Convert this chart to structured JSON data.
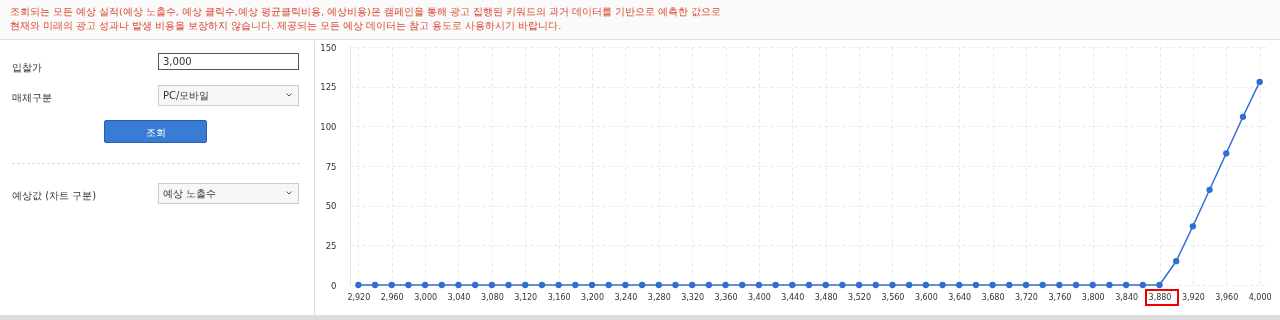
{
  "chart_data": [
    {
      "type": "other",
      "annotations": [
        "조회되는 모든 예상 실적(예상 노출수, 예상 클릭수,예상 평균클릭비용, 예상비용)은 캠페인을 통해 광고 집행된 키워드의 과거 데이터를 기반으로 예측한 값으로",
        "현재와 미래의 광고 성과나 발생 비용을 보장하지 않습니다. 제공되는 모든 예상 데이터는 참고 용도로 사용하시기 바랍니다.",
        "입찰가",
        "3,000",
        "매체구분",
        "PC/모바일",
        "조회",
        "예상값 (차트 구분)",
        "예상 노출수"
      ]
    },
    {
      "type": "line",
      "x": [
        2920,
        2940,
        2960,
        2980,
        3000,
        3020,
        3040,
        3060,
        3080,
        3100,
        3120,
        3140,
        3160,
        3180,
        3200,
        3220,
        3240,
        3260,
        3280,
        3300,
        3320,
        3340,
        3360,
        3380,
        3400,
        3420,
        3440,
        3460,
        3480,
        3500,
        3520,
        3540,
        3560,
        3580,
        3600,
        3620,
        3640,
        3660,
        3680,
        3700,
        3720,
        3740,
        3760,
        3780,
        3800,
        3820,
        3840,
        3860,
        3880,
        3900,
        3920,
        3940,
        3960,
        3980,
        4000
      ],
      "series": [
        {
          "color": "#2e6fd1",
          "values": [
            0,
            0,
            0,
            0,
            0,
            0,
            0,
            0,
            0,
            0,
            0,
            0,
            0,
            0,
            0,
            0,
            0,
            0,
            0,
            0,
            0,
            0,
            0,
            0,
            0,
            0,
            0,
            0,
            0,
            0,
            0,
            0,
            0,
            0,
            0,
            0,
            0,
            0,
            0,
            0,
            0,
            0,
            0,
            0,
            0,
            0,
            0,
            0,
            0,
            15,
            37,
            60,
            83,
            106,
            128
          ]
        }
      ],
      "xlim": [
        2910,
        4010
      ],
      "xticks": [
        {
          "value": 2920,
          "label": "2,920"
        },
        {
          "value": 2960,
          "label": "2,960"
        },
        {
          "value": 3000,
          "label": "3,000"
        },
        {
          "value": 3040,
          "label": "3,040"
        },
        {
          "value": 3080,
          "label": "3,080"
        },
        {
          "value": 3120,
          "label": "3,120"
        },
        {
          "value": 3160,
          "label": "3,160"
        },
        {
          "value": 3200,
          "label": "3,200"
        },
        {
          "value": 3240,
          "label": "3,240"
        },
        {
          "value": 3280,
          "label": "3,280"
        },
        {
          "value": 3320,
          "label": "3,320"
        },
        {
          "value": 3360,
          "label": "3,360"
        },
        {
          "value": 3400,
          "label": "3,400"
        },
        {
          "value": 3440,
          "label": "3,440"
        },
        {
          "value": 3480,
          "label": "3,480"
        },
        {
          "value": 3520,
          "label": "3,520"
        },
        {
          "value": 3560,
          "label": "3,560"
        },
        {
          "value": 3600,
          "label": "3,600"
        },
        {
          "value": 3640,
          "label": "3,640"
        },
        {
          "value": 3680,
          "label": "3,680"
        },
        {
          "value": 3720,
          "label": "3,720"
        },
        {
          "value": 3760,
          "label": "3,760"
        },
        {
          "value": 3800,
          "label": "3,800"
        },
        {
          "value": 3840,
          "label": "3,840"
        },
        {
          "value": 3880,
          "label": "3,880"
        },
        {
          "value": 3920,
          "label": "3,920"
        },
        {
          "value": 3960,
          "label": "3,960"
        },
        {
          "value": 4000,
          "label": "4,000"
        }
      ],
      "ylim": [
        0,
        150
      ],
      "yticks": [
        0,
        25,
        50,
        75,
        100,
        125,
        150
      ],
      "grid": true,
      "marker": "circle",
      "line_style": "solid"
    }
  ]
}
